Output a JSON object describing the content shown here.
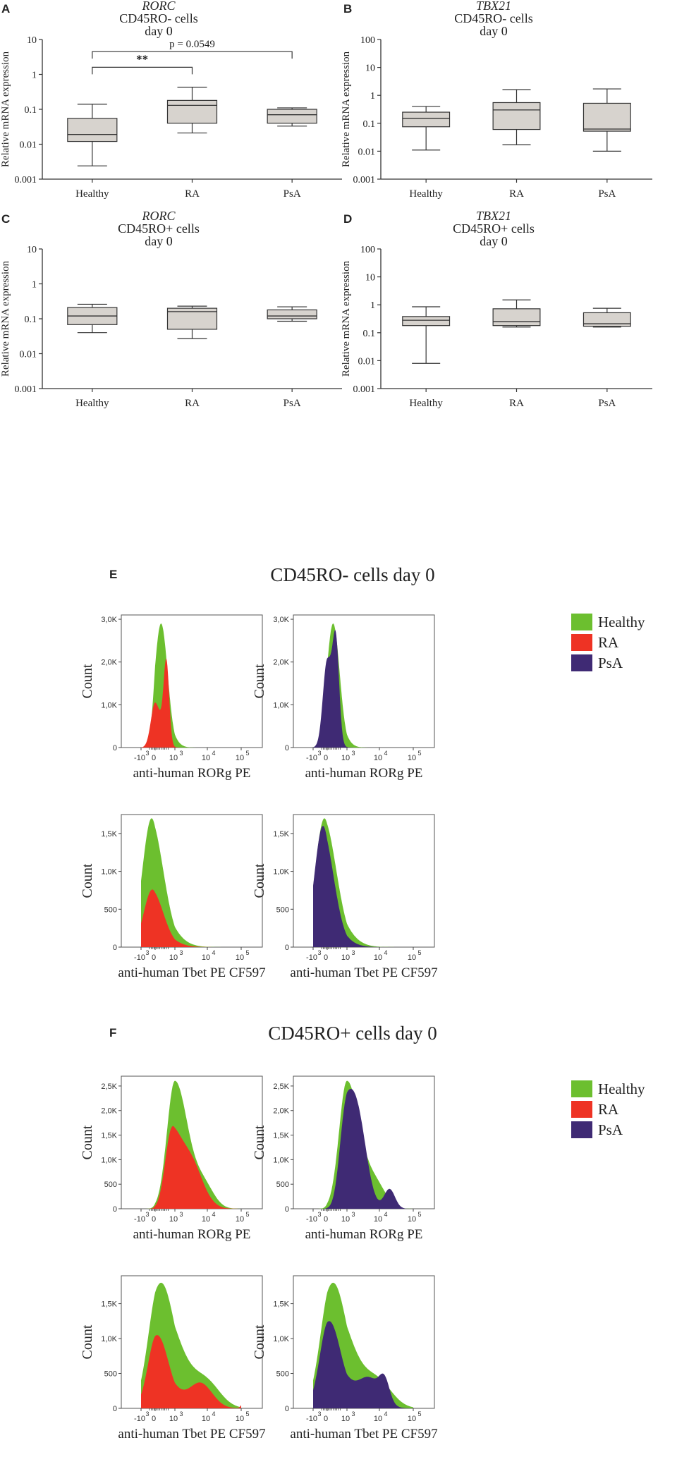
{
  "colors": {
    "healthy": "#6cbf2f",
    "ra": "#ee3324",
    "psa": "#3f2a74",
    "box_fill": "#d7d3ce",
    "axis": "#333333"
  },
  "legend": [
    {
      "key": "healthy",
      "label": "Healthy"
    },
    {
      "key": "ra",
      "label": "RA"
    },
    {
      "key": "psa",
      "label": "PsA"
    }
  ],
  "section_e": {
    "letter": "E",
    "title": "CD45RO- cells day 0"
  },
  "section_f": {
    "letter": "F",
    "title": "CD45RO+ cells day 0"
  },
  "chart_data": [
    {
      "type": "box",
      "panel": "A",
      "gene": "RORC",
      "line2": "CD45RO- cells",
      "line3": "day 0",
      "ylabel": "Relative mRNA expression",
      "yscale": "log",
      "ylim": [
        0.001,
        10
      ],
      "ytick_labels": [
        "0.001",
        "0.01",
        "0.1",
        "1",
        "10"
      ],
      "categories": [
        "Healthy",
        "RA",
        "PsA"
      ],
      "boxes": [
        {
          "min": 0.0024,
          "q1": 0.012,
          "median": 0.019,
          "q3": 0.055,
          "max": 0.14
        },
        {
          "min": 0.021,
          "q1": 0.04,
          "median": 0.13,
          "q3": 0.18,
          "max": 0.43
        },
        {
          "min": 0.033,
          "q1": 0.04,
          "median": 0.07,
          "q3": 0.1,
          "max": 0.11
        }
      ],
      "annotations": [
        {
          "from": 0,
          "to": 1,
          "level": 1.6,
          "label": "**"
        },
        {
          "from": 0,
          "to": 2,
          "level": 4.5,
          "label": "p = 0.0549"
        }
      ]
    },
    {
      "type": "box",
      "panel": "B",
      "gene": "TBX21",
      "line2": "CD45RO- cells",
      "line3": "day 0",
      "ylabel": "Relative mRNA expression",
      "yscale": "log",
      "ylim": [
        0.001,
        100
      ],
      "ytick_labels": [
        "0.001",
        "0.01",
        "0.1",
        "1",
        "10",
        "100"
      ],
      "categories": [
        "Healthy",
        "RA",
        "PsA"
      ],
      "boxes": [
        {
          "min": 0.011,
          "q1": 0.075,
          "median": 0.15,
          "q3": 0.25,
          "max": 0.4
        },
        {
          "min": 0.017,
          "q1": 0.06,
          "median": 0.3,
          "q3": 0.55,
          "max": 1.6
        },
        {
          "min": 0.01,
          "q1": 0.052,
          "median": 0.062,
          "q3": 0.52,
          "max": 1.7
        }
      ],
      "annotations": []
    },
    {
      "type": "box",
      "panel": "C",
      "gene": "RORC",
      "line2": "CD45RO+ cells",
      "line3": "day 0",
      "ylabel": "Relative mRNA expression",
      "yscale": "log",
      "ylim": [
        0.001,
        10
      ],
      "ytick_labels": [
        "0.001",
        "0.01",
        "0.1",
        "1",
        "10"
      ],
      "categories": [
        "Healthy",
        "RA",
        "PsA"
      ],
      "boxes": [
        {
          "min": 0.04,
          "q1": 0.068,
          "median": 0.12,
          "q3": 0.21,
          "max": 0.26
        },
        {
          "min": 0.027,
          "q1": 0.05,
          "median": 0.16,
          "q3": 0.2,
          "max": 0.23
        },
        {
          "min": 0.085,
          "q1": 0.1,
          "median": 0.12,
          "q3": 0.18,
          "max": 0.22
        }
      ],
      "annotations": []
    },
    {
      "type": "box",
      "panel": "D",
      "gene": "TBX21",
      "line2": "CD45RO+ cells",
      "line3": "day 0",
      "ylabel": "Relative mRNA expression",
      "yscale": "log",
      "ylim": [
        0.001,
        100
      ],
      "ytick_labels": [
        "0.001",
        "0.01",
        "0.1",
        "1",
        "10",
        "100"
      ],
      "categories": [
        "Healthy",
        "RA",
        "PsA"
      ],
      "boxes": [
        {
          "min": 0.008,
          "q1": 0.18,
          "median": 0.28,
          "q3": 0.38,
          "max": 0.85
        },
        {
          "min": 0.16,
          "q1": 0.18,
          "median": 0.25,
          "q3": 0.72,
          "max": 1.5
        },
        {
          "min": 0.16,
          "q1": 0.17,
          "median": 0.21,
          "q3": 0.52,
          "max": 0.75
        }
      ],
      "annotations": []
    },
    {
      "type": "histogram",
      "section": "E",
      "marker": "RORg",
      "xlabel": "anti-human RORg PE",
      "ylabel": "Count",
      "ytick_labels": [
        "0",
        "1,0K",
        "2,0K",
        "3,0K"
      ],
      "ymax": 3.1,
      "ystep": 1.0,
      "xtick_labels": [
        "-10",
        "0",
        "10",
        "10",
        "10"
      ],
      "xtick_exponents": [
        "3",
        "",
        "3",
        "4",
        "5"
      ],
      "series": [
        {
          "name": "Healthy",
          "key": "healthy",
          "peaks": [
            [
              0.3,
              2.9,
              0.33
            ]
          ]
        },
        {
          "name": "RA",
          "key": "ra",
          "peaks": [
            [
              0.0,
              1.05,
              0.3
            ],
            [
              0.57,
              1.9,
              0.14
            ]
          ]
        }
      ]
    },
    {
      "type": "histogram",
      "section": "E",
      "marker": "RORg",
      "xlabel": "anti-human RORg PE",
      "ylabel": "Count",
      "ytick_labels": [
        "0",
        "1,0K",
        "2,0K",
        "3,0K"
      ],
      "ymax": 3.1,
      "ystep": 1.0,
      "xtick_labels": [
        "-10",
        "0",
        "10",
        "10",
        "10"
      ],
      "xtick_exponents": [
        "3",
        "",
        "3",
        "4",
        "5"
      ],
      "series": [
        {
          "name": "Healthy",
          "key": "healthy",
          "peaks": [
            [
              0.3,
              2.9,
              0.33
            ]
          ]
        },
        {
          "name": "PsA",
          "key": "psa",
          "peaks": [
            [
              0.0,
              2.05,
              0.3
            ],
            [
              0.45,
              2.0,
              0.16
            ]
          ]
        }
      ]
    },
    {
      "type": "histogram",
      "section": "E",
      "marker": "Tbet",
      "xlabel": "anti-human Tbet PE CF597",
      "ylabel": "Count",
      "ytick_labels": [
        "0",
        "500",
        "1,0K",
        "1,5K"
      ],
      "ymax": 1.75,
      "ystep": 0.5,
      "xtick_labels": [
        "-10",
        "0",
        "10",
        "10",
        "10"
      ],
      "xtick_exponents": [
        "3",
        "",
        "3",
        "4",
        "5"
      ],
      "series": [
        {
          "name": "Healthy",
          "key": "healthy",
          "peaks": [
            [
              -0.25,
              1.7,
              0.65
            ]
          ]
        },
        {
          "name": "RA",
          "key": "ra",
          "peaks": [
            [
              -0.2,
              0.76,
              0.6
            ]
          ]
        }
      ]
    },
    {
      "type": "histogram",
      "section": "E",
      "marker": "Tbet",
      "xlabel": "anti-human Tbet PE CF597",
      "ylabel": "Count",
      "ytick_labels": [
        "0",
        "500",
        "1,0K",
        "1,5K"
      ],
      "ymax": 1.75,
      "ystep": 0.5,
      "xtick_labels": [
        "-10",
        "0",
        "10",
        "10",
        "10"
      ],
      "xtick_exponents": [
        "3",
        "",
        "3",
        "4",
        "5"
      ],
      "series": [
        {
          "name": "Healthy",
          "key": "healthy",
          "peaks": [
            [
              -0.2,
              1.7,
              0.65
            ]
          ]
        },
        {
          "name": "PsA",
          "key": "psa",
          "peaks": [
            [
              -0.3,
              1.6,
              0.6
            ]
          ]
        }
      ]
    },
    {
      "type": "histogram",
      "section": "F",
      "marker": "RORg",
      "xlabel": "anti-human RORg PE",
      "ylabel": "Count",
      "ytick_labels": [
        "0",
        "500",
        "1,0K",
        "1,5K",
        "2,0K",
        "2,5K"
      ],
      "ymax": 2.7,
      "ystep": 0.5,
      "xtick_labels": [
        "-10",
        "0",
        "10",
        "10",
        "10"
      ],
      "xtick_exponents": [
        "3",
        "",
        "3",
        "4",
        "5"
      ],
      "series": [
        {
          "name": "Healthy",
          "key": "healthy",
          "peaks": [
            [
              1.0,
              2.6,
              0.4
            ],
            [
              1.9,
              0.45,
              0.3
            ]
          ]
        },
        {
          "name": "RA",
          "key": "ra",
          "peaks": [
            [
              0.8,
              1.4,
              0.32
            ],
            [
              1.45,
              1.0,
              0.38
            ]
          ]
        }
      ]
    },
    {
      "type": "histogram",
      "section": "F",
      "marker": "RORg",
      "xlabel": "anti-human RORg PE",
      "ylabel": "Count",
      "ytick_labels": [
        "0",
        "500",
        "1,0K",
        "1,5K",
        "2,0K",
        "2,5K"
      ],
      "ymax": 2.7,
      "ystep": 0.5,
      "xtick_labels": [
        "-10",
        "0",
        "10",
        "10",
        "10"
      ],
      "xtick_exponents": [
        "3",
        "",
        "3",
        "4",
        "5"
      ],
      "series": [
        {
          "name": "Healthy",
          "key": "healthy",
          "peaks": [
            [
              1.0,
              2.6,
              0.4
            ],
            [
              1.9,
              0.45,
              0.3
            ]
          ]
        },
        {
          "name": "PsA",
          "key": "psa",
          "peaks": [
            [
              0.9,
              1.75,
              0.3
            ],
            [
              1.35,
              1.55,
              0.28
            ],
            [
              2.3,
              0.4,
              0.16
            ]
          ]
        }
      ]
    },
    {
      "type": "histogram",
      "section": "F",
      "marker": "Tbet",
      "xlabel": "anti-human Tbet PE CF597",
      "ylabel": "Count",
      "ytick_labels": [
        "0",
        "500",
        "1,0K",
        "1,5K"
      ],
      "ymax": 1.9,
      "ystep": 0.5,
      "xtick_labels": [
        "-10",
        "0",
        "10",
        "10",
        "10"
      ],
      "xtick_exponents": [
        "3",
        "",
        "3",
        "4",
        "5"
      ],
      "series": [
        {
          "name": "Healthy",
          "key": "healthy",
          "peaks": [
            [
              0.3,
              1.8,
              0.75
            ],
            [
              2.0,
              0.3,
              0.4
            ]
          ]
        },
        {
          "name": "RA",
          "key": "ra",
          "peaks": [
            [
              0.1,
              1.05,
              0.6
            ],
            [
              1.8,
              0.35,
              0.35
            ],
            [
              3.2,
              0.35,
              0.1
            ]
          ]
        }
      ]
    },
    {
      "type": "histogram",
      "section": "F",
      "marker": "Tbet",
      "xlabel": "anti-human Tbet PE CF597",
      "ylabel": "Count",
      "ytick_labels": [
        "0",
        "500",
        "1,0K",
        "1,5K"
      ],
      "ymax": 1.9,
      "ystep": 0.5,
      "xtick_labels": [
        "-10",
        "0",
        "10",
        "10",
        "10"
      ],
      "xtick_exponents": [
        "3",
        "",
        "3",
        "4",
        "5"
      ],
      "series": [
        {
          "name": "Healthy",
          "key": "healthy",
          "peaks": [
            [
              0.3,
              1.8,
              0.75
            ],
            [
              2.0,
              0.3,
              0.4
            ]
          ]
        },
        {
          "name": "PsA",
          "key": "psa",
          "peaks": [
            [
              0.1,
              1.25,
              0.62
            ],
            [
              1.7,
              0.4,
              0.35
            ],
            [
              2.15,
              0.3,
              0.15
            ]
          ]
        }
      ]
    }
  ]
}
